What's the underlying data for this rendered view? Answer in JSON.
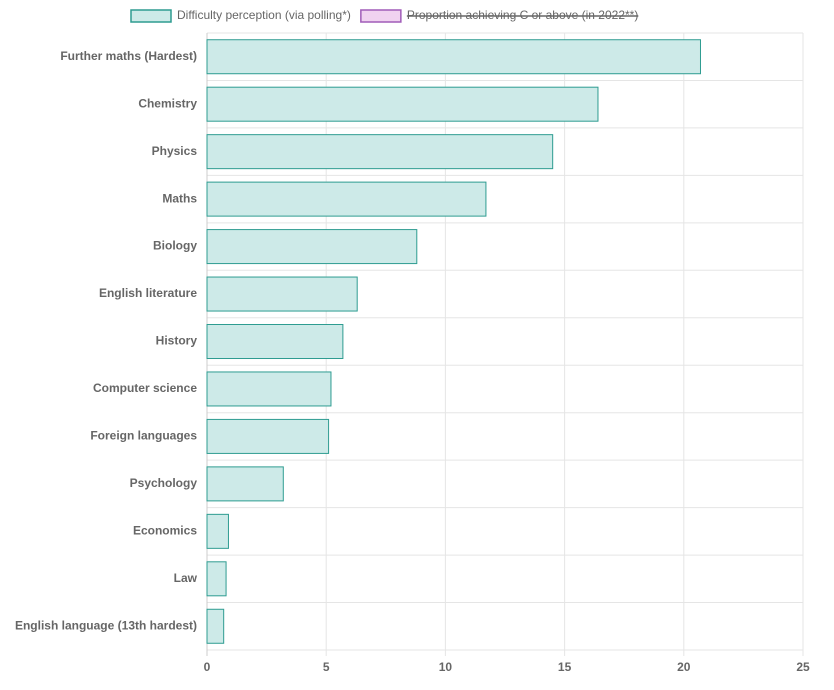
{
  "chart_data": {
    "type": "bar",
    "orientation": "horizontal",
    "categories": [
      "Further maths (Hardest)",
      "Chemistry",
      "Physics",
      "Maths",
      "Biology",
      "English literature",
      "History",
      "Computer science",
      "Foreign languages",
      "Psychology",
      "Economics",
      "Law",
      "English language (13th hardest)"
    ],
    "series": [
      {
        "name": "Difficulty perception (via polling*)",
        "color": "#2e9c91",
        "fill": "#cdeae8",
        "values": [
          20.7,
          16.4,
          14.5,
          11.7,
          8.8,
          6.3,
          5.7,
          5.2,
          5.1,
          3.2,
          0.9,
          0.8,
          0.7
        ]
      },
      {
        "name": "Proportion achieving C or above (in 2022**)",
        "color": "#a05cb8",
        "fill": "#f0d2f0",
        "hidden": true
      }
    ],
    "xlim": [
      0,
      25
    ],
    "xticks": [
      0,
      5,
      10,
      15,
      20,
      25
    ],
    "grid": true,
    "legend": "top"
  }
}
